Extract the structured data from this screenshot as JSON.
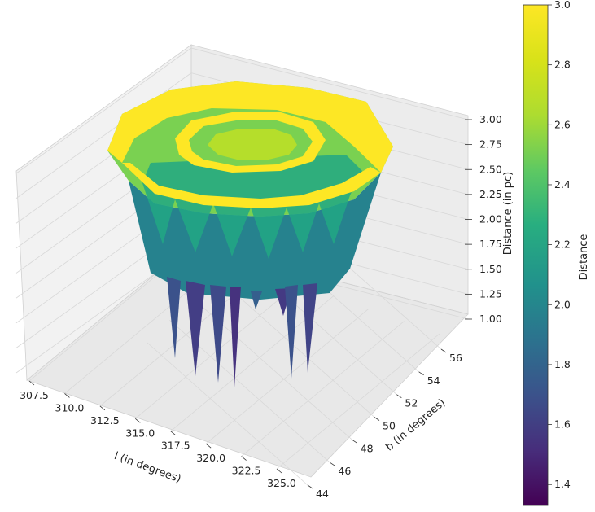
{
  "chart_data": {
    "type": "surface3d",
    "title": "",
    "xlabel": "l (in degrees)",
    "ylabel": "b (in degrees)",
    "zlabel": "Distance (in pc)",
    "xticks": [
      "307.5",
      "310.0",
      "312.5",
      "315.0",
      "317.5",
      "320.0",
      "322.5",
      "325.0"
    ],
    "yticks": [
      "44",
      "46",
      "48",
      "50",
      "52",
      "54",
      "56"
    ],
    "zticks": [
      "1.00",
      "1.25",
      "1.50",
      "1.75",
      "2.00",
      "2.25",
      "2.50",
      "2.75",
      "3.00"
    ],
    "xlim": [
      306,
      326
    ],
    "ylim": [
      44,
      57
    ],
    "zlim": [
      1.0,
      3.0
    ],
    "colorbar": {
      "label": "Distance",
      "colormap": "viridis",
      "range": [
        1.33,
        3.0
      ],
      "ticks": [
        "1.4",
        "1.6",
        "1.8",
        "2.0",
        "2.2",
        "2.4",
        "2.6",
        "2.8",
        "3.0"
      ]
    },
    "surface_summary": {
      "outer_ring_distance": 3.0,
      "inner_ring_distance": 3.0,
      "wall_distance_range": [
        2.5,
        2.7
      ],
      "lower_wall_distance_range": [
        1.5,
        2.3
      ],
      "spike_min_distance": 1.33
    }
  }
}
